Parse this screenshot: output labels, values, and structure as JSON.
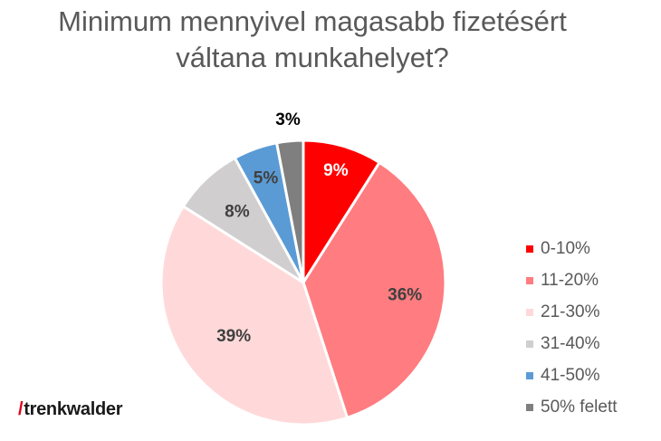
{
  "title_line1": "Minimum mennyivel magasabb fizetésért",
  "title_line2": "váltana munkahelyet?",
  "logo": {
    "slash": "/",
    "text": "trenkwalder"
  },
  "chart_data": {
    "type": "pie",
    "title": "Minimum mennyivel magasabb fizetésért váltana munkahelyet?",
    "categories": [
      "0-10%",
      "11-20%",
      "21-30%",
      "31-40%",
      "41-50%",
      "50% felett"
    ],
    "values": [
      9,
      36,
      39,
      8,
      5,
      3
    ],
    "labels": [
      "9%",
      "36%",
      "39%",
      "8%",
      "5%",
      "3%"
    ],
    "colors": [
      "#ff0000",
      "#ff7c80",
      "#ffd9d9",
      "#d0cece",
      "#5b9bd5",
      "#7f7f7f"
    ],
    "label_colors": [
      "#ffffff",
      "#404040",
      "#404040",
      "#404040",
      "#404040",
      "#000000"
    ],
    "legend_position": "right"
  }
}
